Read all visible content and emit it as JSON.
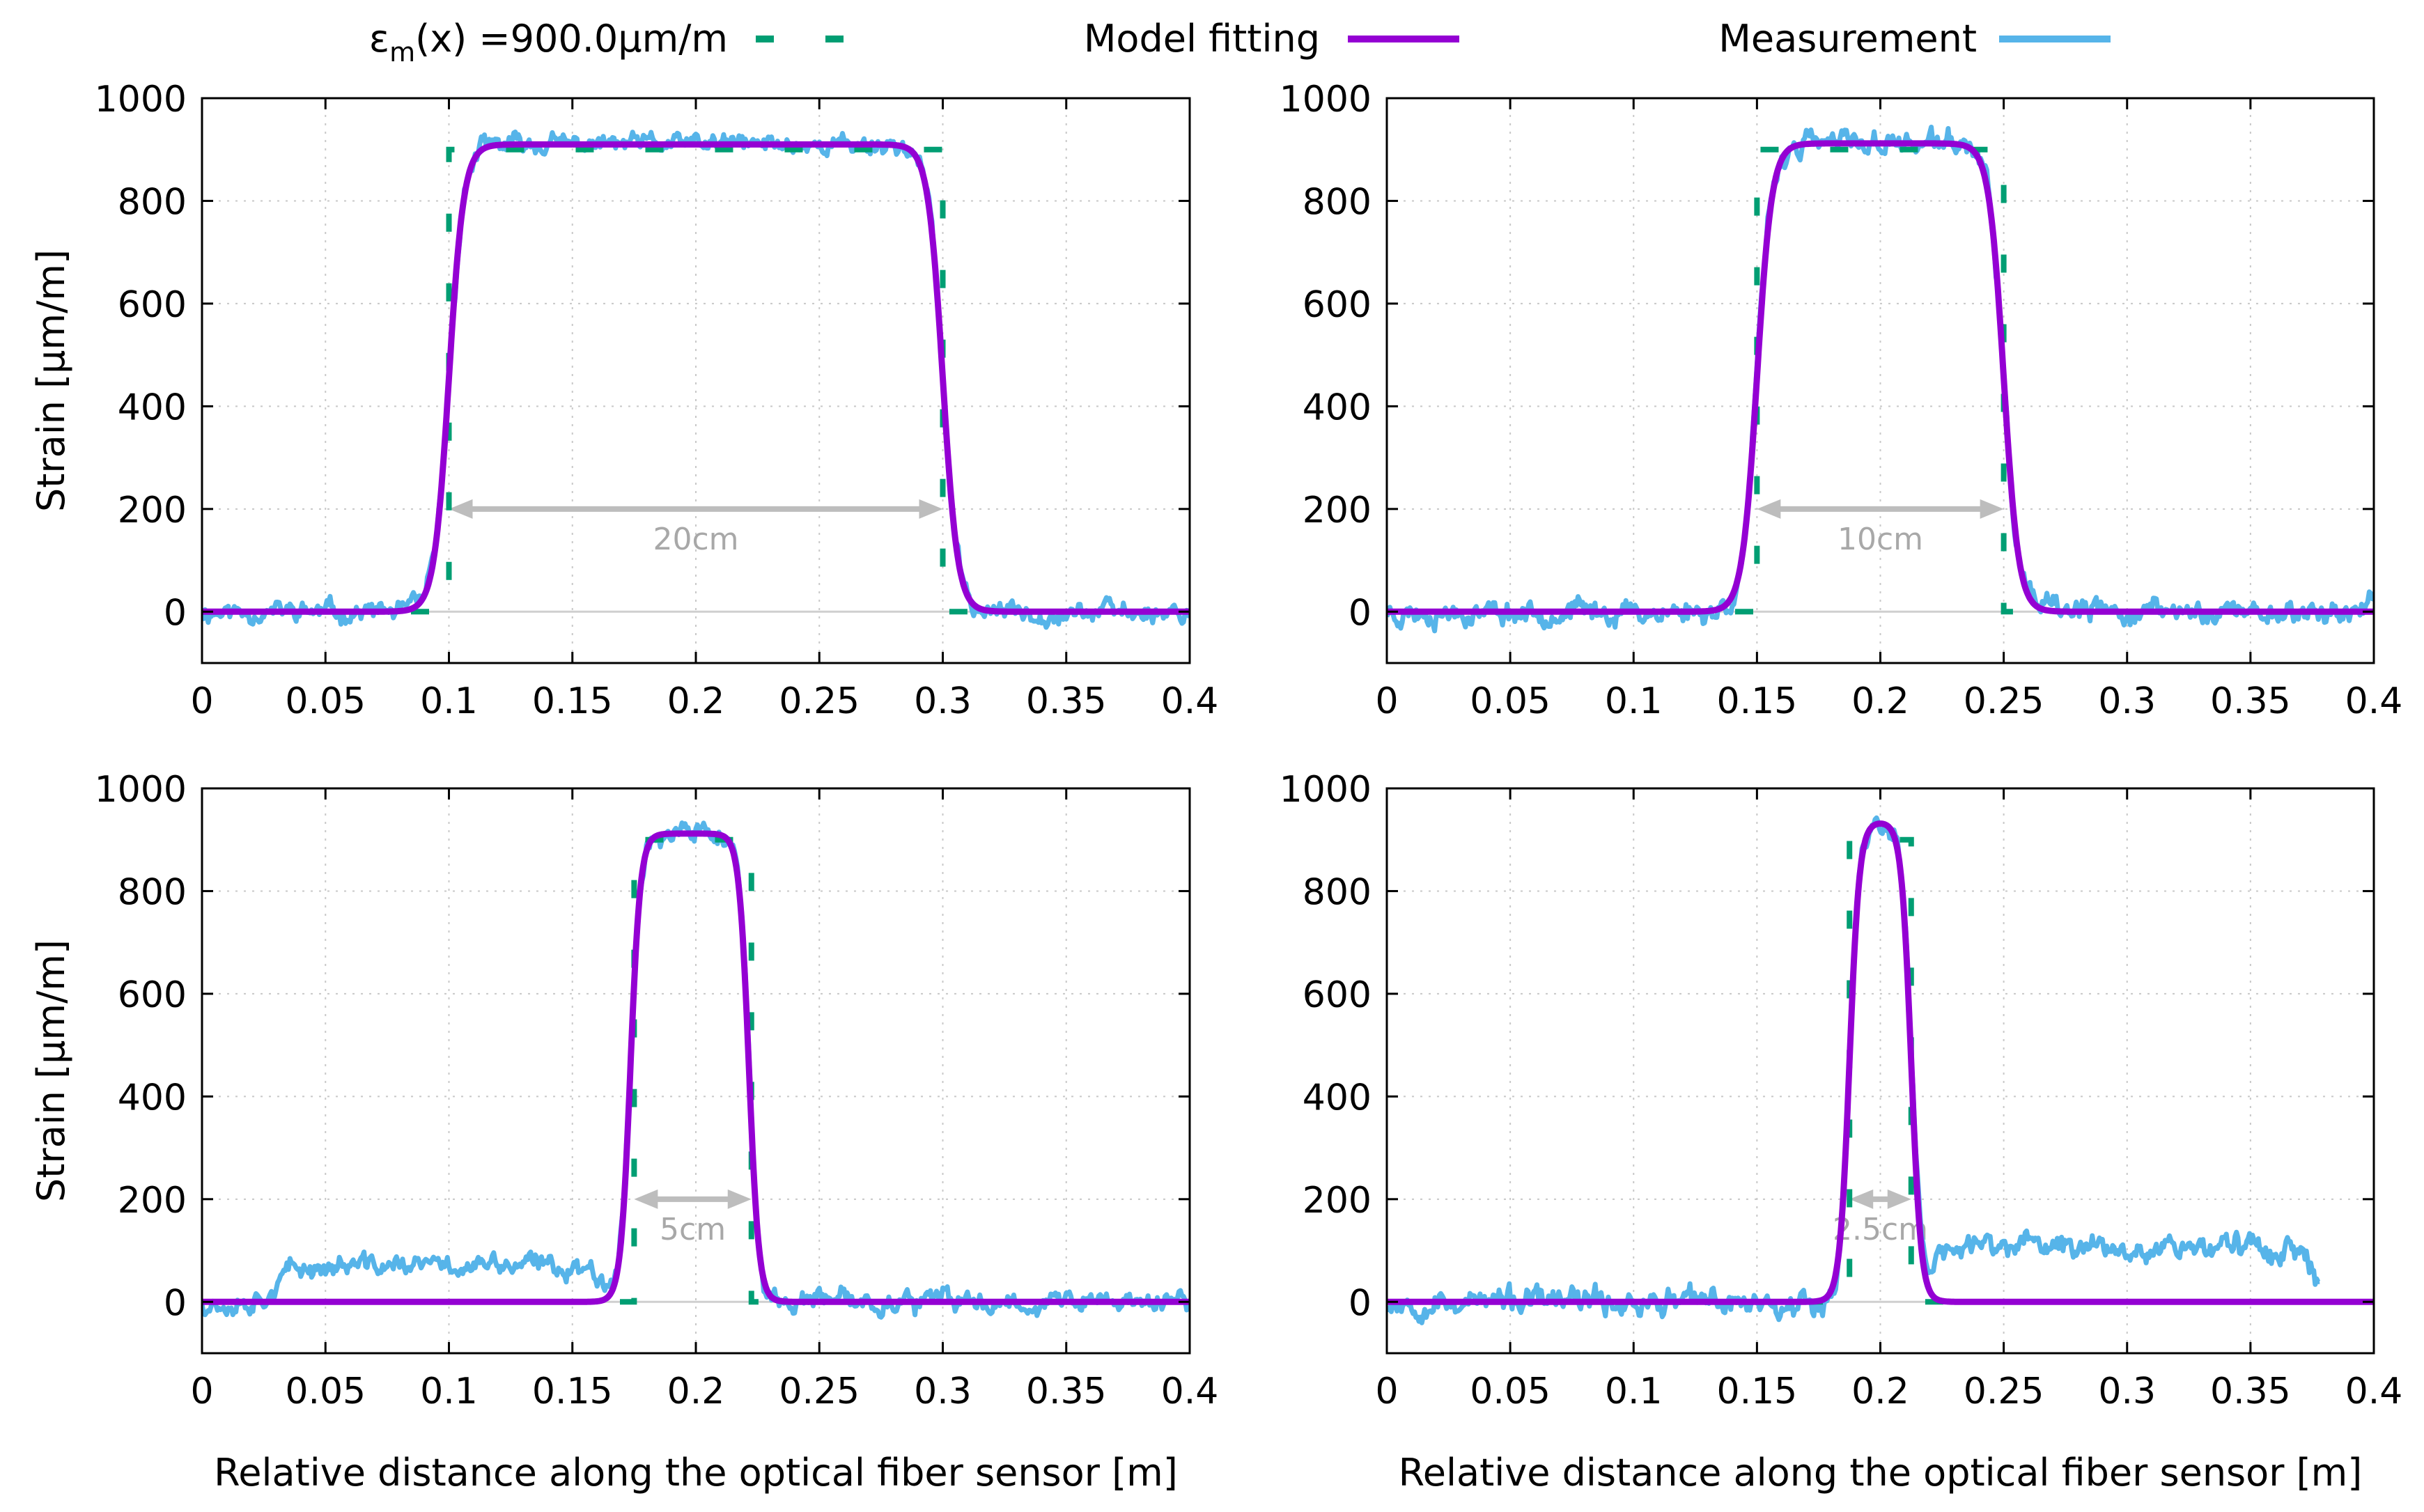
{
  "legend": {
    "model_symbol": "ε",
    "model_sub": "m",
    "model_rest": "(x) =900.0µm/m",
    "fitting": "Model fitting",
    "measurement": "Measurement"
  },
  "colors": {
    "model": "#009e73",
    "fitting": "#9400d3",
    "measurement": "#56b4e9",
    "annotation": "#bdbdbd",
    "grid": "#c8c8c8"
  },
  "chart_data": [
    {
      "type": "line",
      "title": "",
      "xlabel": "",
      "ylabel": "Strain [µm/m]",
      "xlim": [
        0,
        0.4
      ],
      "ylim": [
        -100,
        1000
      ],
      "x_ticks": [
        "0",
        "0.05",
        "0.1",
        "0.15",
        "0.2",
        "0.25",
        "0.3",
        "0.35",
        "0.4"
      ],
      "y_ticks": [
        "0",
        "200",
        "400",
        "600",
        "800",
        "1000"
      ],
      "annotation": "20cm",
      "step": {
        "start": 0.1,
        "end": 0.3,
        "level": 900
      },
      "fit": {
        "start": 0.1,
        "end": 0.3,
        "level": 910,
        "width": 0.003
      },
      "noise": {
        "seed": 11,
        "amp": 22,
        "max_x": 0.4,
        "base_segments": []
      },
      "series": [
        {
          "name": "ε_m(x) =900.0µm/m",
          "values": "piecewise: 0 for x<0.1, 900 for 0.1<=x<=0.3, 0 otherwise"
        },
        {
          "name": "Model fitting",
          "values": "smoothed step ≈910 between 0.1 and 0.3"
        },
        {
          "name": "Measurement",
          "values": "noisy around fit, ±30"
        }
      ]
    },
    {
      "type": "line",
      "title": "",
      "xlabel": "",
      "ylabel": "",
      "xlim": [
        0,
        0.4
      ],
      "ylim": [
        -100,
        1000
      ],
      "x_ticks": [
        "0",
        "0.05",
        "0.1",
        "0.15",
        "0.2",
        "0.25",
        "0.3",
        "0.35",
        "0.4"
      ],
      "y_ticks": [
        "0",
        "200",
        "400",
        "600",
        "800",
        "1000"
      ],
      "annotation": "10cm",
      "step": {
        "start": 0.15,
        "end": 0.25,
        "level": 900
      },
      "fit": {
        "start": 0.15,
        "end": 0.25,
        "level": 912,
        "width": 0.003
      },
      "noise": {
        "seed": 23,
        "amp": 26,
        "max_x": 0.4,
        "base_segments": []
      },
      "series": [
        {
          "name": "ε_m(x) =900.0µm/m",
          "values": "900 between 0.15 and 0.25"
        },
        {
          "name": "Model fitting",
          "values": "smoothed step ≈912 between 0.15 and 0.25"
        },
        {
          "name": "Measurement",
          "values": "noisy around fit, ±35"
        }
      ]
    },
    {
      "type": "line",
      "title": "",
      "xlabel": "Relative distance along the optical fiber sensor [m]",
      "ylabel": "Strain [µm/m]",
      "xlim": [
        0,
        0.4
      ],
      "ylim": [
        -100,
        1000
      ],
      "x_ticks": [
        "0",
        "0.05",
        "0.1",
        "0.15",
        "0.2",
        "0.25",
        "0.3",
        "0.35",
        "0.4"
      ],
      "y_ticks": [
        "0",
        "200",
        "400",
        "600",
        "800",
        "1000"
      ],
      "annotation": "5cm",
      "step": {
        "start": 0.175,
        "end": 0.2225,
        "level": 900
      },
      "fit": {
        "start": 0.1735,
        "end": 0.2215,
        "level": 912,
        "width": 0.002
      },
      "noise": {
        "seed": 37,
        "amp": 24,
        "max_x": 0.4,
        "base_segments": [
          [
            0.03,
            0.165,
            70
          ]
        ]
      },
      "series": [
        {
          "name": "ε_m(x) =900.0µm/m",
          "values": "900 between 0.175 and 0.2225"
        },
        {
          "name": "Model fitting",
          "values": "smoothed step ≈912 between 0.174 and 0.222"
        },
        {
          "name": "Measurement",
          "values": "noisy, baseline ≈70 from 0.03 to 0.165"
        }
      ]
    },
    {
      "type": "line",
      "title": "",
      "xlabel": "Relative distance along the optical fiber sensor [m]",
      "ylabel": "",
      "xlim": [
        0,
        0.4
      ],
      "ylim": [
        -100,
        1000
      ],
      "x_ticks": [
        "0",
        "0.05",
        "0.1",
        "0.15",
        "0.2",
        "0.25",
        "0.3",
        "0.35",
        "0.4"
      ],
      "y_ticks": [
        "0",
        "200",
        "400",
        "600",
        "800",
        "1000"
      ],
      "annotation": "2.5cm",
      "step": {
        "start": 0.1875,
        "end": 0.2125,
        "level": 900
      },
      "fit": {
        "start": 0.1875,
        "end": 0.2125,
        "level": 935,
        "width": 0.002
      },
      "noise": {
        "seed": 53,
        "amp": 28,
        "max_x": 0.378,
        "base_segments": [
          [
            0.22,
            0.375,
            110
          ]
        ]
      },
      "series": [
        {
          "name": "ε_m(x) =900.0µm/m",
          "values": "900 between 0.1875 and 0.2125"
        },
        {
          "name": "Model fitting",
          "values": "smoothed step ≈935 between 0.1875 and 0.2125"
        },
        {
          "name": "Measurement",
          "values": "noisy, elevated ≈110 from 0.22 to 0.375, ends at 0.378"
        }
      ]
    }
  ]
}
